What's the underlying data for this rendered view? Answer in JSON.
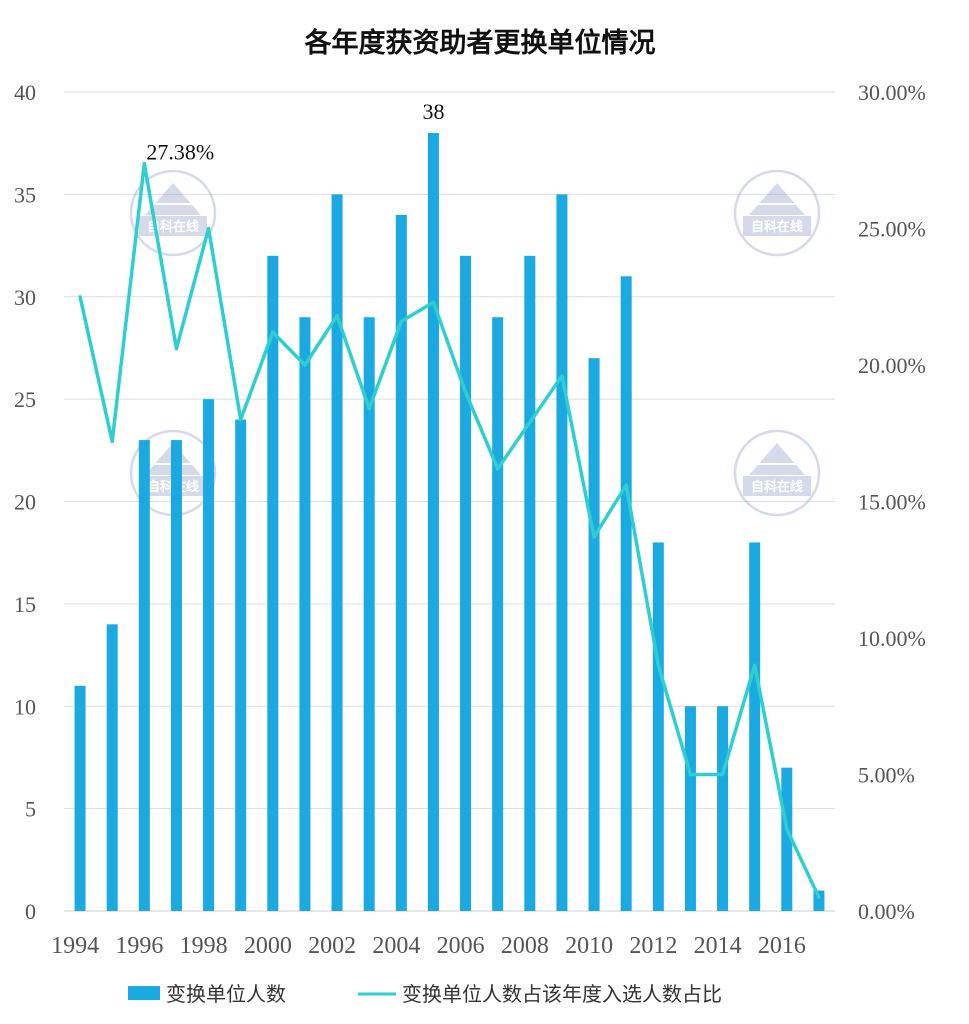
{
  "chart_data": {
    "type": "bar+line",
    "title": "各年度获资助者更换单位情况",
    "x": [
      1994,
      1995,
      1996,
      1997,
      1998,
      1999,
      2000,
      2001,
      2002,
      2003,
      2004,
      2005,
      2006,
      2007,
      2008,
      2009,
      2010,
      2011,
      2012,
      2013,
      2014,
      2015,
      2016,
      2017
    ],
    "x_tick_labels": [
      "1994",
      "1996",
      "1998",
      "2000",
      "2002",
      "2004",
      "2006",
      "2008",
      "2010",
      "2012",
      "2014",
      "2016"
    ],
    "series": [
      {
        "name": "变换单位人数",
        "type": "bar",
        "axis": "left",
        "color": "#1ba9e1",
        "values": [
          11,
          14,
          23,
          23,
          25,
          24,
          32,
          29,
          35,
          29,
          34,
          38,
          32,
          29,
          32,
          35,
          27,
          31,
          18,
          10,
          10,
          18,
          7,
          1
        ]
      },
      {
        "name": "变换单位人数占该年度入选人数占比",
        "type": "line",
        "axis": "right",
        "color": "#2ecfd0",
        "values": [
          0.225,
          0.172,
          0.2738,
          0.206,
          0.25,
          0.18,
          0.212,
          0.2,
          0.218,
          0.184,
          0.216,
          0.223,
          0.19,
          0.162,
          0.179,
          0.196,
          0.137,
          0.156,
          0.09,
          0.05,
          0.05,
          0.09,
          0.03,
          0.005
        ]
      }
    ],
    "y_left": {
      "min": 0,
      "max": 40,
      "ticks": [
        "0",
        "5",
        "10",
        "15",
        "20",
        "25",
        "30",
        "35",
        "40"
      ]
    },
    "y_right": {
      "min": 0,
      "max": 0.3,
      "ticks": [
        "0.00%",
        "5.00%",
        "10.00%",
        "15.00%",
        "20.00%",
        "25.00%",
        "30.00%"
      ]
    },
    "annotations": [
      {
        "text": "38",
        "series": 0,
        "index": 11
      },
      {
        "text": "27.38%",
        "series": 1,
        "index": 2
      }
    ],
    "grid": true,
    "legend_position": "bottom"
  },
  "watermark": {
    "text": "自科在线"
  }
}
